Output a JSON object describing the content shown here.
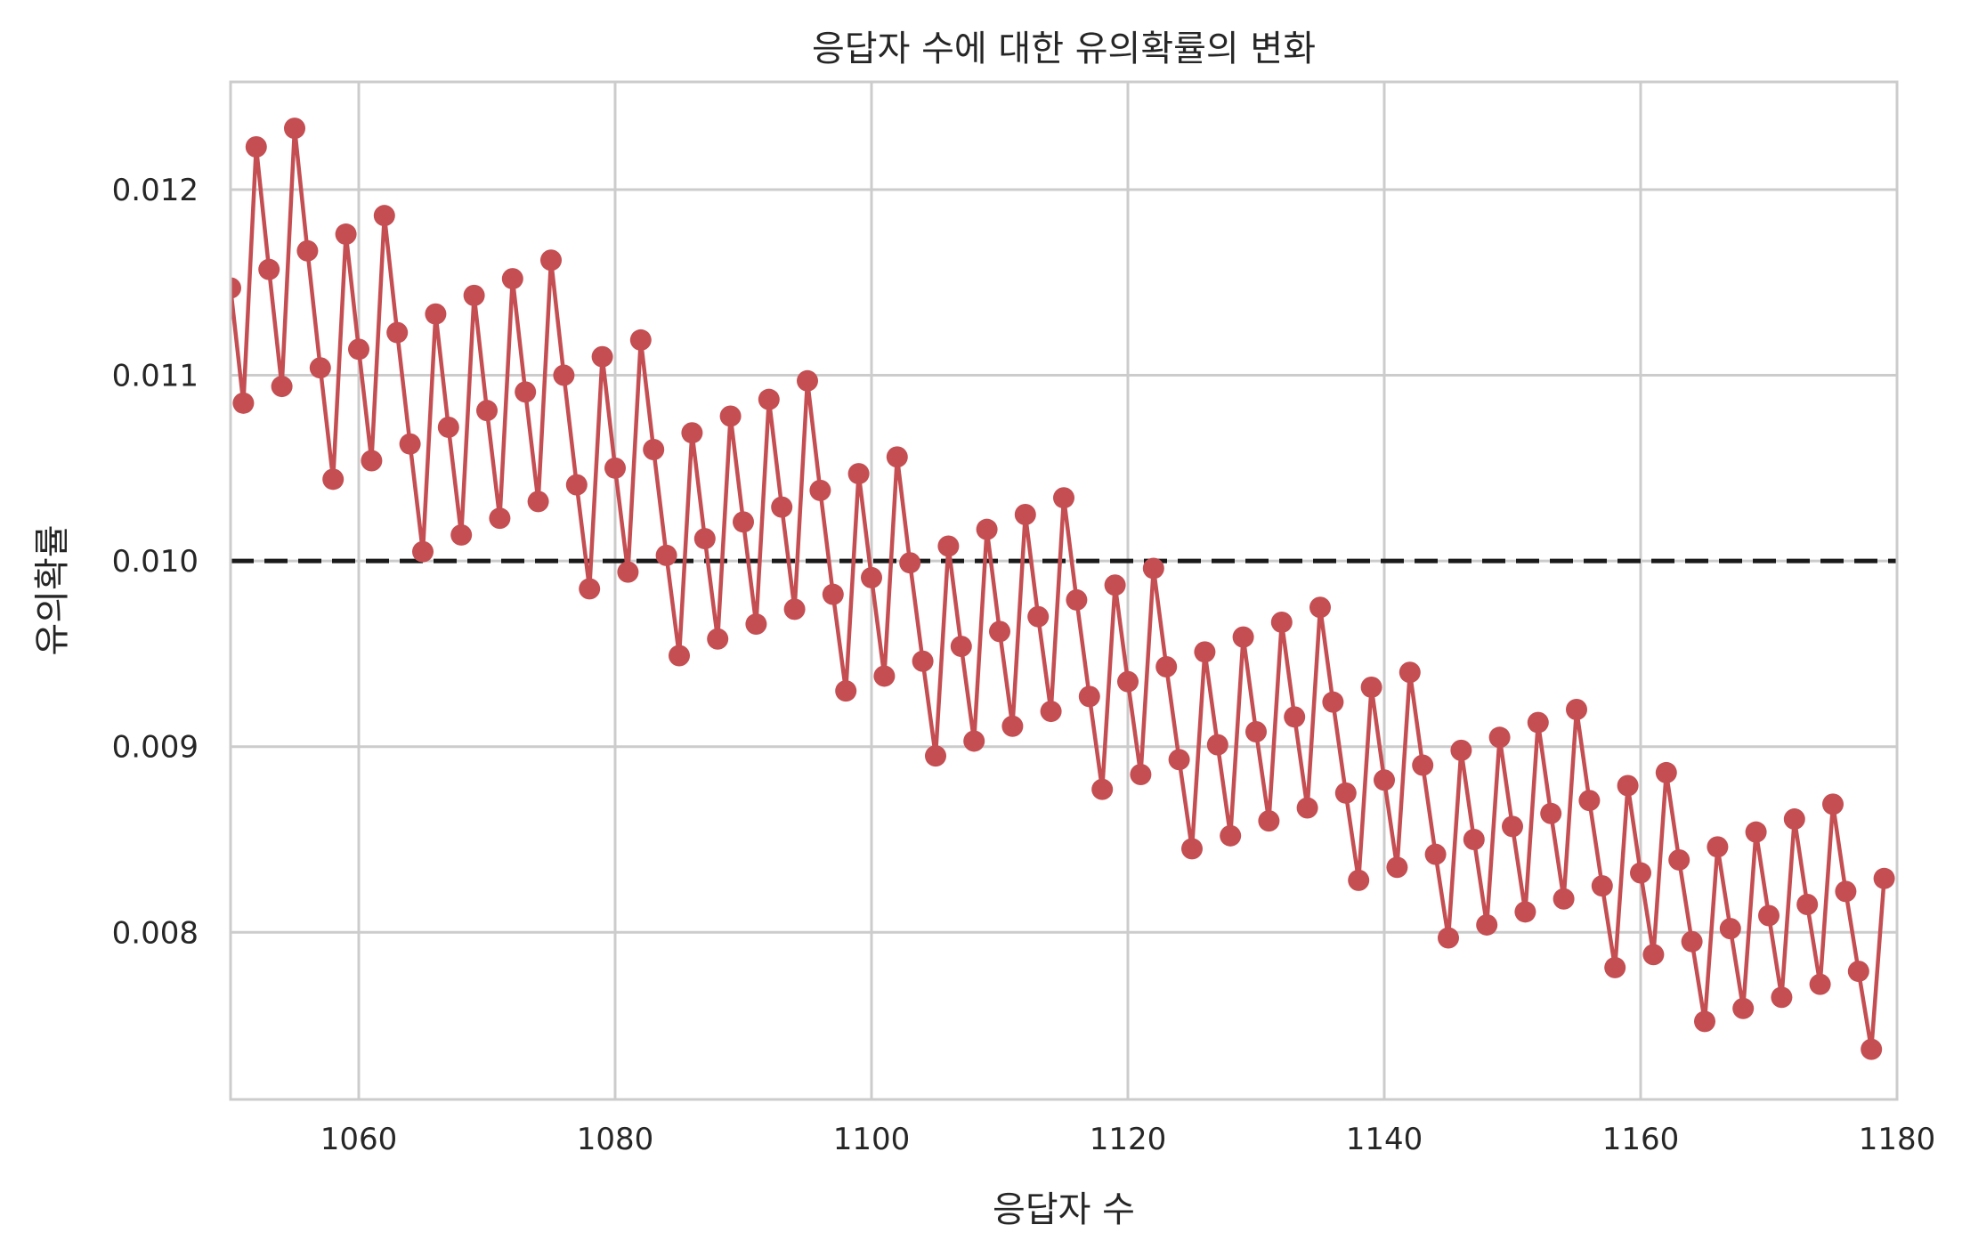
{
  "chart_data": {
    "type": "line",
    "title": "응답자 수에 대한 유의확률의 변화",
    "xlabel": "응답자 수",
    "ylabel": "유의확률",
    "xlim": [
      1050,
      1180
    ],
    "ylim": [
      0.0071,
      0.01258
    ],
    "xticks": [
      1060,
      1080,
      1100,
      1120,
      1140,
      1160,
      1180
    ],
    "xtick_labels": [
      "1060",
      "1080",
      "1100",
      "1120",
      "1140",
      "1160",
      "1180"
    ],
    "yticks": [
      0.008,
      0.009,
      0.01,
      0.011,
      0.012
    ],
    "ytick_labels": [
      "0.008",
      "0.009",
      "0.010",
      "0.011",
      "0.012"
    ],
    "grid": true,
    "reference_line": {
      "y": 0.01,
      "style": "dashed",
      "color": "#1a1a1a"
    },
    "series": [
      {
        "color": "#c44e52",
        "marker": "circle",
        "x": [
          1050,
          1051,
          1052,
          1053,
          1054,
          1055,
          1056,
          1057,
          1058,
          1059,
          1060,
          1061,
          1062,
          1063,
          1064,
          1065,
          1066,
          1067,
          1068,
          1069,
          1070,
          1071,
          1072,
          1073,
          1074,
          1075,
          1076,
          1077,
          1078,
          1079,
          1080,
          1081,
          1082,
          1083,
          1084,
          1085,
          1086,
          1087,
          1088,
          1089,
          1090,
          1091,
          1092,
          1093,
          1094,
          1095,
          1096,
          1097,
          1098,
          1099,
          1100,
          1101,
          1102,
          1103,
          1104,
          1105,
          1106,
          1107,
          1108,
          1109,
          1110,
          1111,
          1112,
          1113,
          1114,
          1115,
          1116,
          1117,
          1118,
          1119,
          1120,
          1121,
          1122,
          1123,
          1124,
          1125,
          1126,
          1127,
          1128,
          1129,
          1130,
          1131,
          1132,
          1133,
          1134,
          1135,
          1136,
          1137,
          1138,
          1139,
          1140,
          1141,
          1142,
          1143,
          1144,
          1145,
          1146,
          1147,
          1148,
          1149,
          1150,
          1151,
          1152,
          1153,
          1154,
          1155,
          1156,
          1157,
          1158,
          1159,
          1160,
          1161,
          1162,
          1163,
          1164,
          1165,
          1166,
          1167,
          1168,
          1169,
          1170,
          1171,
          1172,
          1173,
          1174,
          1175,
          1176,
          1177,
          1178,
          1179
        ],
        "values": [
          0.01147,
          0.01085,
          0.01223,
          0.01157,
          0.01094,
          0.01233,
          0.01167,
          0.01104,
          0.01044,
          0.01176,
          0.01114,
          0.01054,
          0.01186,
          0.01123,
          0.01063,
          0.01005,
          0.01133,
          0.01072,
          0.01014,
          0.01143,
          0.01081,
          0.01023,
          0.01152,
          0.01091,
          0.01032,
          0.01162,
          0.011,
          0.01041,
          0.00985,
          0.0111,
          0.0105,
          0.00994,
          0.01119,
          0.0106,
          0.01003,
          0.00949,
          0.01069,
          0.01012,
          0.00958,
          0.01078,
          0.01021,
          0.00966,
          0.01087,
          0.01029,
          0.00974,
          0.01097,
          0.01038,
          0.00982,
          0.0093,
          0.01047,
          0.00991,
          0.00938,
          0.01056,
          0.00999,
          0.00946,
          0.00895,
          0.01008,
          0.00954,
          0.00903,
          0.01017,
          0.00962,
          0.00911,
          0.01025,
          0.0097,
          0.00919,
          0.01034,
          0.00979,
          0.00927,
          0.00877,
          0.00987,
          0.00935,
          0.00885,
          0.00996,
          0.00943,
          0.00893,
          0.00845,
          0.00951,
          0.00901,
          0.00852,
          0.00959,
          0.00908,
          0.0086,
          0.00967,
          0.00916,
          0.00867,
          0.00975,
          0.00924,
          0.00875,
          0.00828,
          0.00932,
          0.00882,
          0.00835,
          0.0094,
          0.0089,
          0.00842,
          0.00797,
          0.00898,
          0.0085,
          0.00804,
          0.00905,
          0.00857,
          0.00811,
          0.00913,
          0.00864,
          0.00818,
          0.0092,
          0.00871,
          0.00825,
          0.00781,
          0.00879,
          0.00832,
          0.00788,
          0.00886,
          0.00839,
          0.00795,
          0.00752,
          0.00846,
          0.00802,
          0.00759,
          0.00854,
          0.00809,
          0.00765,
          0.00861,
          0.00815,
          0.00772,
          0.00869,
          0.00822,
          0.00779,
          0.00737,
          0.00829
        ]
      }
    ]
  }
}
